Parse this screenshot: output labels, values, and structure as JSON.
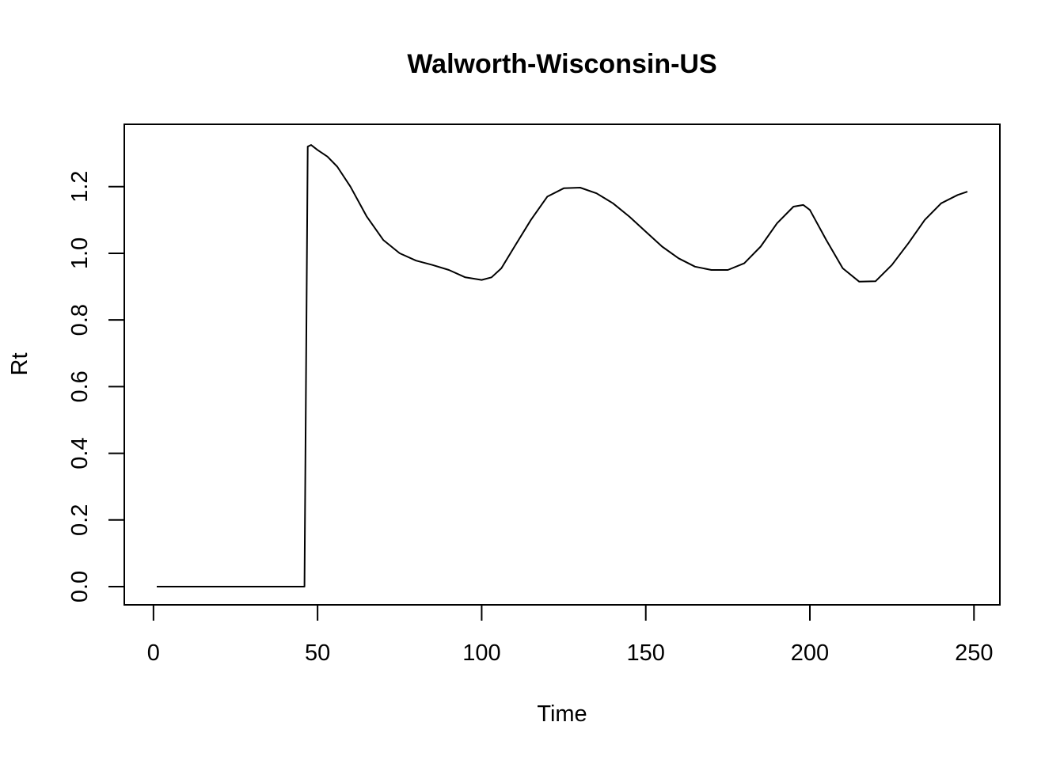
{
  "chart_data": {
    "type": "line",
    "title": "Walworth-Wisconsin-US",
    "xlabel": "Time",
    "ylabel": "Rt",
    "xlim": [
      1,
      248
    ],
    "ylim": [
      0,
      1.33
    ],
    "xticks": [
      0,
      50,
      100,
      150,
      200,
      250
    ],
    "yticks": [
      0.0,
      0.2,
      0.4,
      0.6,
      0.8,
      1.0,
      1.2
    ],
    "ytick_labels": [
      "0.0",
      "0.2",
      "0.4",
      "0.6",
      "0.8",
      "1.0",
      "1.2"
    ],
    "grid": false,
    "line_color": "#000000",
    "series": [
      {
        "x": [
          1,
          10,
          20,
          30,
          40,
          46,
          47,
          48,
          50,
          53,
          56,
          60,
          65,
          70,
          75,
          80,
          85,
          90,
          95,
          100,
          103,
          106,
          110,
          115,
          120,
          125,
          130,
          135,
          140,
          145,
          150,
          155,
          160,
          165,
          170,
          175,
          180,
          185,
          190,
          195,
          198,
          200,
          205,
          210,
          215,
          220,
          225,
          230,
          235,
          240,
          245,
          248
        ],
        "y": [
          0,
          0,
          0,
          0,
          0,
          0,
          1.32,
          1.325,
          1.31,
          1.29,
          1.26,
          1.2,
          1.11,
          1.04,
          1.0,
          0.978,
          0.965,
          0.95,
          0.928,
          0.92,
          0.928,
          0.955,
          1.02,
          1.1,
          1.17,
          1.195,
          1.197,
          1.18,
          1.15,
          1.11,
          1.065,
          1.02,
          0.985,
          0.96,
          0.95,
          0.95,
          0.97,
          1.02,
          1.09,
          1.14,
          1.145,
          1.13,
          1.04,
          0.955,
          0.915,
          0.916,
          0.965,
          1.03,
          1.1,
          1.15,
          1.175,
          1.185
        ]
      }
    ]
  }
}
